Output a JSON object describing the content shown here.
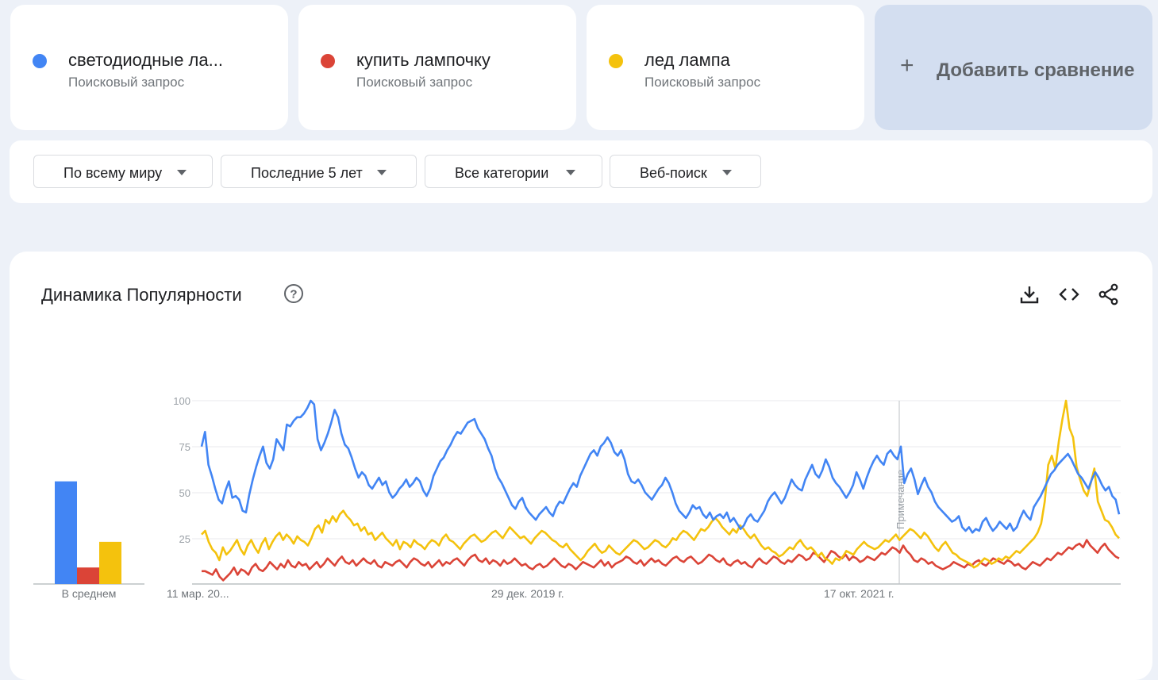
{
  "terms": [
    {
      "name": "светодиодные ла...",
      "type": "Поисковый запрос",
      "color": "#4285f4"
    },
    {
      "name": "купить лампочку",
      "type": "Поисковый запрос",
      "color": "#db4437"
    },
    {
      "name": "лед лампа",
      "type": "Поисковый запрос",
      "color": "#f4c20d"
    }
  ],
  "add_compare": {
    "label": "Добавить сравнение",
    "icon": "plus-icon"
  },
  "filters": [
    {
      "label": "По всему миру"
    },
    {
      "label": "Последние 5 лет"
    },
    {
      "label": "Все категории"
    },
    {
      "label": "Веб-поиск"
    }
  ],
  "chart_title": "Динамика Популярности",
  "toolbar": {
    "icons": [
      "download-icon",
      "embed-code-icon",
      "share-icon"
    ]
  },
  "chart_data": {
    "type": "line",
    "y_ticks": [
      "100",
      "75",
      "50",
      "25"
    ],
    "ylim": [
      0,
      100
    ],
    "x_tick_labels": [
      "11 мар. 20...",
      "29 дек. 2019 г.",
      "17 окт. 2021 г."
    ],
    "annotation": "Примечание",
    "average_label": "В среднем",
    "averages": [
      {
        "name": "светодиодные ла...",
        "value": 56,
        "color": "#4285f4"
      },
      {
        "name": "купить лампочку",
        "value": 9,
        "color": "#db4437"
      },
      {
        "name": "лед лампа",
        "value": 23,
        "color": "#f4c20d"
      }
    ],
    "series": [
      {
        "name": "светодиодные ла...",
        "color": "#4285f4",
        "values": [
          75,
          83,
          65,
          59,
          52,
          46,
          44,
          51,
          56,
          47,
          48,
          46,
          40,
          39,
          49,
          57,
          64,
          70,
          75,
          66,
          63,
          68,
          79,
          76,
          73,
          87,
          86,
          89,
          91,
          91,
          93,
          96,
          100,
          98,
          79,
          73,
          77,
          82,
          88,
          95,
          91,
          82,
          76,
          74,
          69,
          63,
          58,
          61,
          59,
          54,
          52,
          55,
          58,
          54,
          56,
          50,
          47,
          49,
          52,
          54,
          57,
          53,
          55,
          58,
          56,
          51,
          48,
          52,
          59,
          63,
          67,
          69,
          73,
          76,
          80,
          83,
          82,
          85,
          88,
          89,
          90,
          85,
          82,
          79,
          74,
          70,
          63,
          58,
          55,
          51,
          47,
          43,
          41,
          45,
          47,
          42,
          39,
          37,
          35,
          38,
          40,
          42,
          39,
          37,
          42,
          45,
          44,
          48,
          52,
          55,
          53,
          59,
          63,
          67,
          71,
          73,
          70,
          75,
          77,
          80,
          77,
          72,
          70,
          73,
          68,
          60,
          56,
          55,
          57,
          54,
          50,
          48,
          46,
          49,
          52,
          54,
          58,
          55,
          50,
          44,
          40,
          38,
          36,
          39,
          43,
          41,
          42,
          38,
          36,
          39,
          35,
          37,
          38,
          36,
          39,
          34,
          36,
          33,
          30,
          32,
          36,
          38,
          35,
          34,
          37,
          40,
          45,
          48,
          50,
          47,
          44,
          47,
          52,
          57,
          54,
          52,
          51,
          57,
          61,
          65,
          60,
          58,
          62,
          68,
          64,
          58,
          55,
          53,
          50,
          47,
          50,
          54,
          61,
          57,
          52,
          58,
          63,
          67,
          70,
          67,
          65,
          71,
          73,
          70,
          68,
          75,
          55,
          60,
          63,
          57,
          49,
          54,
          58,
          53,
          50,
          45,
          42,
          40,
          38,
          36,
          34,
          35,
          37,
          31,
          29,
          31,
          28,
          30,
          29,
          34,
          36,
          32,
          29,
          31,
          34,
          32,
          30,
          33,
          29,
          31,
          36,
          40,
          37,
          35,
          42,
          45,
          48,
          52,
          56,
          60,
          62,
          65,
          67,
          69,
          71,
          68,
          64,
          60,
          58,
          55,
          52,
          57,
          61,
          58,
          54,
          51,
          53,
          48,
          46,
          38
        ]
      },
      {
        "name": "купить лампочку",
        "color": "#db4437",
        "values": [
          7,
          7,
          6,
          5,
          8,
          4,
          2,
          4,
          6,
          9,
          5,
          8,
          7,
          5,
          9,
          11,
          8,
          7,
          9,
          12,
          10,
          8,
          11,
          9,
          13,
          10,
          9,
          12,
          10,
          11,
          8,
          10,
          12,
          9,
          11,
          14,
          12,
          10,
          13,
          15,
          12,
          11,
          13,
          10,
          12,
          14,
          12,
          11,
          13,
          10,
          9,
          12,
          11,
          10,
          12,
          13,
          11,
          9,
          12,
          14,
          13,
          11,
          10,
          12,
          9,
          11,
          13,
          10,
          12,
          11,
          13,
          14,
          12,
          10,
          13,
          15,
          16,
          13,
          12,
          14,
          11,
          13,
          12,
          10,
          13,
          11,
          12,
          14,
          12,
          10,
          11,
          9,
          8,
          10,
          11,
          9,
          10,
          12,
          14,
          12,
          10,
          9,
          11,
          10,
          8,
          10,
          12,
          11,
          10,
          9,
          11,
          13,
          10,
          12,
          9,
          11,
          12,
          13,
          15,
          14,
          12,
          11,
          13,
          10,
          12,
          14,
          12,
          13,
          11,
          10,
          12,
          14,
          15,
          13,
          12,
          14,
          15,
          13,
          11,
          12,
          14,
          16,
          15,
          13,
          12,
          14,
          11,
          10,
          12,
          13,
          11,
          12,
          10,
          9,
          12,
          14,
          12,
          11,
          13,
          15,
          14,
          12,
          11,
          13,
          12,
          14,
          16,
          15,
          13,
          14,
          17,
          16,
          14,
          12,
          15,
          18,
          17,
          15,
          14,
          16,
          13,
          15,
          14,
          12,
          13,
          15,
          14,
          13,
          15,
          17,
          16,
          18,
          20,
          19,
          17,
          21,
          18,
          16,
          13,
          12,
          14,
          13,
          11,
          12,
          10,
          9,
          8,
          9,
          10,
          12,
          11,
          10,
          9,
          11,
          10,
          12,
          13,
          11,
          10,
          12,
          14,
          13,
          12,
          11,
          13,
          12,
          10,
          11,
          9,
          8,
          10,
          12,
          11,
          10,
          12,
          14,
          13,
          15,
          17,
          16,
          18,
          20,
          19,
          21,
          22,
          20,
          24,
          21,
          19,
          17,
          20,
          22,
          19,
          17,
          15,
          14
        ]
      },
      {
        "name": "лед лампа",
        "color": "#f4c20d",
        "values": [
          27,
          29,
          23,
          19,
          17,
          13,
          20,
          16,
          18,
          21,
          24,
          19,
          16,
          21,
          24,
          20,
          17,
          22,
          25,
          19,
          23,
          26,
          28,
          24,
          27,
          25,
          22,
          26,
          24,
          23,
          21,
          25,
          30,
          32,
          28,
          35,
          33,
          37,
          34,
          38,
          40,
          37,
          35,
          32,
          33,
          29,
          31,
          27,
          28,
          24,
          26,
          28,
          25,
          23,
          21,
          24,
          19,
          23,
          22,
          20,
          24,
          22,
          21,
          19,
          22,
          24,
          23,
          21,
          25,
          27,
          24,
          23,
          21,
          19,
          22,
          24,
          26,
          27,
          25,
          23,
          24,
          26,
          28,
          29,
          27,
          25,
          28,
          31,
          29,
          27,
          25,
          26,
          24,
          22,
          25,
          27,
          29,
          28,
          26,
          24,
          23,
          21,
          20,
          22,
          19,
          17,
          15,
          13,
          15,
          18,
          20,
          22,
          19,
          17,
          18,
          21,
          19,
          17,
          16,
          18,
          20,
          22,
          24,
          23,
          21,
          19,
          20,
          22,
          24,
          23,
          21,
          20,
          22,
          25,
          24,
          27,
          29,
          28,
          26,
          24,
          27,
          30,
          29,
          31,
          34,
          36,
          34,
          31,
          29,
          27,
          30,
          28,
          32,
          30,
          27,
          25,
          27,
          24,
          21,
          19,
          20,
          18,
          17,
          15,
          16,
          18,
          20,
          19,
          22,
          24,
          21,
          19,
          20,
          18,
          15,
          17,
          14,
          13,
          11,
          14,
          13,
          15,
          18,
          17,
          16,
          19,
          21,
          23,
          21,
          20,
          19,
          20,
          22,
          24,
          23,
          25,
          27,
          24,
          26,
          28,
          30,
          29,
          27,
          25,
          28,
          26,
          23,
          20,
          18,
          21,
          23,
          20,
          17,
          16,
          14,
          13,
          12,
          11,
          9,
          10,
          12,
          14,
          13,
          11,
          12,
          14,
          13,
          15,
          14,
          16,
          18,
          17,
          19,
          21,
          23,
          25,
          28,
          33,
          45,
          65,
          70,
          63,
          78,
          90,
          100,
          85,
          80,
          64,
          57,
          51,
          48,
          55,
          63,
          45,
          40,
          35,
          34,
          31,
          27,
          25
        ]
      }
    ]
  }
}
